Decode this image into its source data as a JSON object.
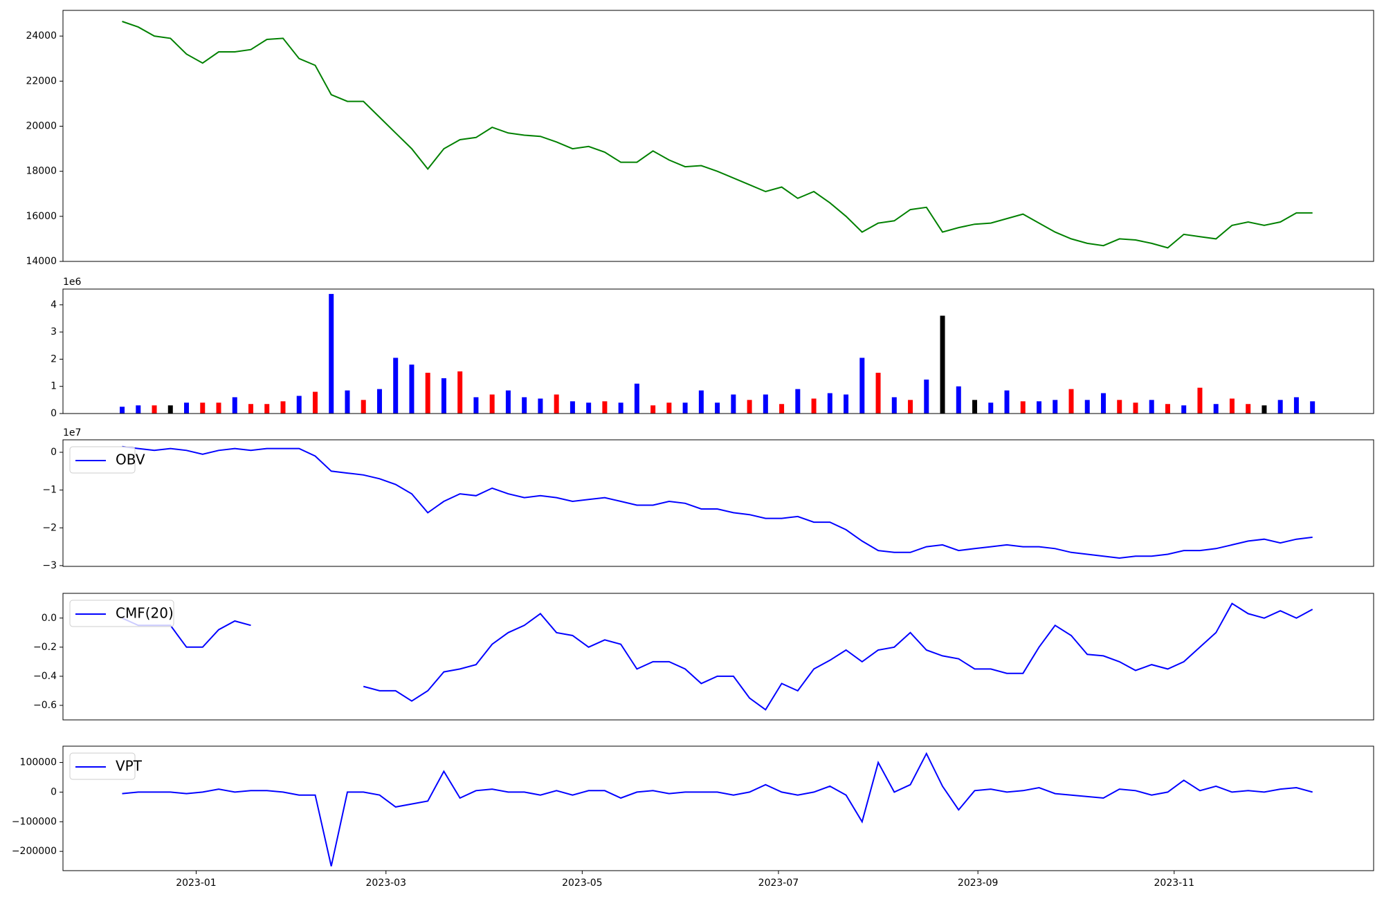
{
  "chart_data": [
    {
      "type": "line",
      "color": "#008000",
      "x": [
        -23,
        -18,
        -13,
        -8,
        -3,
        2,
        7,
        12,
        17,
        22,
        27,
        32,
        37,
        42,
        47,
        52,
        57,
        62,
        67,
        72,
        77,
        82,
        87,
        92,
        97,
        102,
        107,
        112,
        117,
        122,
        127,
        132,
        137,
        142,
        147,
        152,
        157,
        162,
        167,
        172,
        177,
        182,
        187,
        192,
        197,
        202,
        207,
        212,
        217,
        222,
        227,
        232,
        237,
        242,
        247,
        252,
        257,
        262,
        267,
        272,
        277,
        282,
        287,
        292,
        297,
        302,
        307,
        312,
        317,
        322,
        327,
        332,
        337,
        342,
        347
      ],
      "values": [
        24650,
        24400,
        24000,
        23900,
        23200,
        22800,
        23300,
        23300,
        23400,
        23850,
        23900,
        23000,
        22700,
        21400,
        21100,
        21100,
        20400,
        19700,
        19000,
        18100,
        19000,
        19400,
        19500,
        19950,
        19700,
        19600,
        19550,
        19300,
        19000,
        19100,
        18850,
        18400,
        18400,
        18900,
        18500,
        18200,
        18250,
        18000,
        17700,
        17400,
        17100,
        17300,
        16800,
        17100,
        16600,
        16000,
        15300,
        15700,
        15800,
        16300,
        16400,
        15300,
        15500,
        15650,
        15700,
        15900,
        16100,
        15700,
        15300,
        15000,
        14800,
        14700,
        15000,
        14950,
        14800,
        14600,
        15200,
        15100,
        15000,
        15600,
        15750,
        15600,
        15750,
        16150,
        16150
      ],
      "xlim": [
        -41.4,
        366
      ],
      "ylim": [
        14000,
        25140
      ],
      "yticks": [
        14000,
        16000,
        18000,
        20000,
        22000,
        24000
      ]
    },
    {
      "type": "bar",
      "offset_label": "1e6",
      "x": [
        -23,
        -18,
        -13,
        -8,
        -3,
        2,
        7,
        12,
        17,
        22,
        27,
        32,
        37,
        42,
        47,
        52,
        57,
        62,
        67,
        72,
        77,
        82,
        87,
        92,
        97,
        102,
        107,
        112,
        117,
        122,
        127,
        132,
        137,
        142,
        147,
        152,
        157,
        162,
        167,
        172,
        177,
        182,
        187,
        192,
        197,
        202,
        207,
        212,
        217,
        222,
        227,
        232,
        237,
        242,
        247,
        252,
        257,
        262,
        267,
        272,
        277,
        282,
        287,
        292,
        297,
        302,
        307,
        312,
        317,
        322,
        327,
        332,
        337,
        342,
        347
      ],
      "values": [
        0.25,
        0.3,
        0.3,
        0.3,
        0.4,
        0.4,
        0.4,
        0.6,
        0.35,
        0.35,
        0.45,
        0.65,
        0.8,
        4.4,
        0.85,
        0.5,
        0.9,
        2.05,
        1.8,
        1.5,
        1.3,
        1.55,
        0.6,
        0.7,
        0.85,
        0.6,
        0.55,
        0.7,
        0.45,
        0.4,
        0.45,
        0.4,
        1.1,
        0.3,
        0.4,
        0.4,
        0.85,
        0.4,
        0.7,
        0.5,
        0.7,
        0.35,
        0.9,
        0.55,
        0.75,
        0.7,
        2.05,
        1.5,
        0.6,
        0.5,
        1.25,
        3.6,
        1.0,
        0.5,
        0.4,
        0.85,
        0.45,
        0.45,
        0.5,
        0.9,
        0.5,
        0.75,
        0.5,
        0.4,
        0.5,
        0.35,
        0.3,
        0.95,
        0.35,
        0.55,
        0.35,
        0.3,
        0.5,
        0.6,
        0.45
      ],
      "colors": [
        "#0000ff",
        "#0000ff",
        "#ff0000",
        "#000000",
        "#0000ff",
        "#ff0000",
        "#ff0000",
        "#0000ff",
        "#ff0000",
        "#ff0000",
        "#ff0000",
        "#0000ff",
        "#ff0000",
        "#0000ff",
        "#0000ff",
        "#ff0000",
        "#0000ff",
        "#0000ff",
        "#0000ff",
        "#ff0000",
        "#0000ff",
        "#ff0000",
        "#0000ff",
        "#ff0000",
        "#0000ff",
        "#0000ff",
        "#0000ff",
        "#ff0000",
        "#0000ff",
        "#0000ff",
        "#ff0000",
        "#0000ff",
        "#0000ff",
        "#ff0000",
        "#ff0000",
        "#0000ff",
        "#0000ff",
        "#0000ff",
        "#0000ff",
        "#ff0000",
        "#0000ff",
        "#ff0000",
        "#0000ff",
        "#ff0000",
        "#0000ff",
        "#0000ff",
        "#0000ff",
        "#ff0000",
        "#0000ff",
        "#ff0000",
        "#0000ff",
        "#000000",
        "#0000ff",
        "#000000",
        "#0000ff",
        "#0000ff",
        "#ff0000",
        "#0000ff",
        "#0000ff",
        "#ff0000",
        "#0000ff",
        "#0000ff",
        "#ff0000",
        "#ff0000",
        "#0000ff",
        "#ff0000",
        "#0000ff",
        "#ff0000",
        "#0000ff",
        "#ff0000",
        "#ff0000",
        "#000000",
        "#0000ff",
        "#0000ff",
        "#0000ff"
      ],
      "xlim": [
        -41.4,
        366
      ],
      "ylim": [
        0,
        4.58
      ],
      "yticks": [
        0,
        1,
        2,
        3,
        4
      ]
    },
    {
      "type": "line",
      "offset_label": "1e7",
      "legend": "upper left",
      "x": [
        -23,
        -18,
        -13,
        -8,
        -3,
        2,
        7,
        12,
        17,
        22,
        27,
        32,
        37,
        42,
        47,
        52,
        57,
        62,
        67,
        72,
        77,
        82,
        87,
        92,
        97,
        102,
        107,
        112,
        117,
        122,
        127,
        132,
        137,
        142,
        147,
        152,
        157,
        162,
        167,
        172,
        177,
        182,
        187,
        192,
        197,
        202,
        207,
        212,
        217,
        222,
        227,
        232,
        237,
        242,
        247,
        252,
        257,
        262,
        267,
        272,
        277,
        282,
        287,
        292,
        297,
        302,
        307,
        312,
        317,
        322,
        327,
        332,
        337,
        342,
        347
      ],
      "series": [
        {
          "name": "OBV",
          "color": "#0000ff",
          "values": [
            0.15,
            0.1,
            0.05,
            0.1,
            0.05,
            -0.05,
            0.05,
            0.1,
            0.05,
            0.1,
            0.1,
            0.1,
            -0.1,
            -0.5,
            -0.55,
            -0.6,
            -0.7,
            -0.85,
            -1.1,
            -1.6,
            -1.3,
            -1.1,
            -1.15,
            -0.95,
            -1.1,
            -1.2,
            -1.15,
            -1.2,
            -1.3,
            -1.25,
            -1.2,
            -1.3,
            -1.4,
            -1.4,
            -1.3,
            -1.35,
            -1.5,
            -1.5,
            -1.6,
            -1.65,
            -1.75,
            -1.75,
            -1.7,
            -1.85,
            -1.85,
            -2.05,
            -2.35,
            -2.6,
            -2.65,
            -2.65,
            -2.5,
            -2.45,
            -2.6,
            -2.55,
            -2.5,
            -2.45,
            -2.5,
            -2.5,
            -2.55,
            -2.65,
            -2.7,
            -2.75,
            -2.8,
            -2.75,
            -2.75,
            -2.7,
            -2.6,
            -2.6,
            -2.55,
            -2.45,
            -2.35,
            -2.3,
            -2.4,
            -2.3,
            -2.25
          ]
        }
      ],
      "xlim": [
        -41.4,
        366
      ],
      "ylim": [
        -3.02,
        0.33
      ],
      "yticks": [
        {
          "value": -3,
          "label": "−3"
        },
        {
          "value": -2,
          "label": "−2"
        },
        {
          "value": -1,
          "label": "−1"
        },
        0
      ]
    },
    {
      "type": "line",
      "legend": "upper left",
      "x": [
        -23,
        -18,
        -13,
        -8,
        -3,
        2,
        7,
        12,
        17,
        22,
        27,
        32,
        37,
        42,
        47,
        52,
        57,
        62,
        67,
        72,
        77,
        82,
        87,
        92,
        97,
        102,
        107,
        112,
        117,
        122,
        127,
        132,
        137,
        142,
        147,
        152,
        157,
        162,
        167,
        172,
        177,
        182,
        187,
        192,
        197,
        202,
        207,
        212,
        217,
        222,
        227,
        232,
        237,
        242,
        247,
        252,
        257,
        262,
        267,
        272,
        277,
        282,
        287,
        292,
        297,
        302,
        307,
        312,
        317,
        322,
        327,
        332,
        337,
        342,
        347
      ],
      "series": [
        {
          "name": "CMF(20)",
          "color": "#0000ff",
          "values": [
            0.0,
            -0.05,
            -0.05,
            -0.05,
            -0.2,
            -0.2,
            -0.08,
            -0.02,
            -0.05,
            null,
            null,
            null,
            null,
            null,
            null,
            -0.47,
            -0.5,
            -0.5,
            -0.57,
            -0.5,
            -0.37,
            -0.35,
            -0.32,
            -0.18,
            -0.1,
            -0.05,
            0.03,
            -0.1,
            -0.12,
            -0.2,
            -0.15,
            -0.18,
            -0.35,
            -0.3,
            -0.3,
            -0.35,
            -0.45,
            -0.4,
            -0.4,
            -0.55,
            -0.63,
            -0.45,
            -0.5,
            -0.35,
            -0.29,
            -0.22,
            -0.3,
            -0.22,
            -0.2,
            -0.1,
            -0.22,
            -0.26,
            -0.28,
            -0.35,
            -0.35,
            -0.38,
            -0.38,
            -0.2,
            -0.05,
            -0.12,
            -0.25,
            -0.26,
            -0.3,
            -0.36,
            -0.32,
            -0.35,
            -0.3,
            -0.2,
            -0.1,
            0.1,
            0.03,
            0.0,
            0.05,
            0.0,
            0.06
          ]
        }
      ],
      "xlim": [
        -41.4,
        366
      ],
      "ylim": [
        -0.7,
        0.17
      ],
      "yticks": [
        {
          "value": -0.6,
          "label": "−0.6"
        },
        {
          "value": -0.4,
          "label": "−0.4"
        },
        {
          "value": -0.2,
          "label": "−0.2"
        },
        {
          "value": 0,
          "label": "0.0"
        }
      ]
    },
    {
      "type": "line",
      "legend": "upper left",
      "x": [
        -23,
        -18,
        -13,
        -8,
        -3,
        2,
        7,
        12,
        17,
        22,
        27,
        32,
        37,
        42,
        47,
        52,
        57,
        62,
        67,
        72,
        77,
        82,
        87,
        92,
        97,
        102,
        107,
        112,
        117,
        122,
        127,
        132,
        137,
        142,
        147,
        152,
        157,
        162,
        167,
        172,
        177,
        182,
        187,
        192,
        197,
        202,
        207,
        212,
        217,
        222,
        227,
        232,
        237,
        242,
        247,
        252,
        257,
        262,
        267,
        272,
        277,
        282,
        287,
        292,
        297,
        302,
        307,
        312,
        317,
        322,
        327,
        332,
        337,
        342,
        347
      ],
      "series": [
        {
          "name": "VPT",
          "color": "#0000ff",
          "values": [
            -5000,
            0,
            0,
            0,
            -5000,
            0,
            10000,
            0,
            5000,
            5000,
            0,
            -10000,
            -10000,
            -250000,
            0,
            0,
            -10000,
            -50000,
            -40000,
            -30000,
            70000,
            -20000,
            5000,
            10000,
            0,
            0,
            -10000,
            5000,
            -10000,
            5000,
            5000,
            -20000,
            0,
            5000,
            -5000,
            0,
            0,
            0,
            -10000,
            0,
            25000,
            0,
            -10000,
            0,
            20000,
            -10000,
            -100000,
            100000,
            0,
            25000,
            130000,
            20000,
            -60000,
            5000,
            10000,
            0,
            5000,
            15000,
            -5000,
            -10000,
            -15000,
            -20000,
            10000,
            5000,
            -10000,
            0,
            40000,
            5000,
            20000,
            0,
            5000,
            0,
            10000,
            15000,
            0
          ]
        }
      ],
      "xlim": [
        -41.4,
        366
      ],
      "ylim": [
        -265000,
        155000
      ],
      "yticks": [
        {
          "value": -200000,
          "label": "−200000"
        },
        {
          "value": -100000,
          "label": "−100000"
        },
        0,
        100000
      ],
      "xticks": [
        {
          "value": 0,
          "label": "2023-01"
        },
        {
          "value": 59,
          "label": "2023-03"
        },
        {
          "value": 120,
          "label": "2023-05"
        },
        {
          "value": 181,
          "label": "2023-07"
        },
        {
          "value": 243,
          "label": "2023-09"
        },
        {
          "value": 304,
          "label": "2023-11"
        }
      ]
    }
  ]
}
